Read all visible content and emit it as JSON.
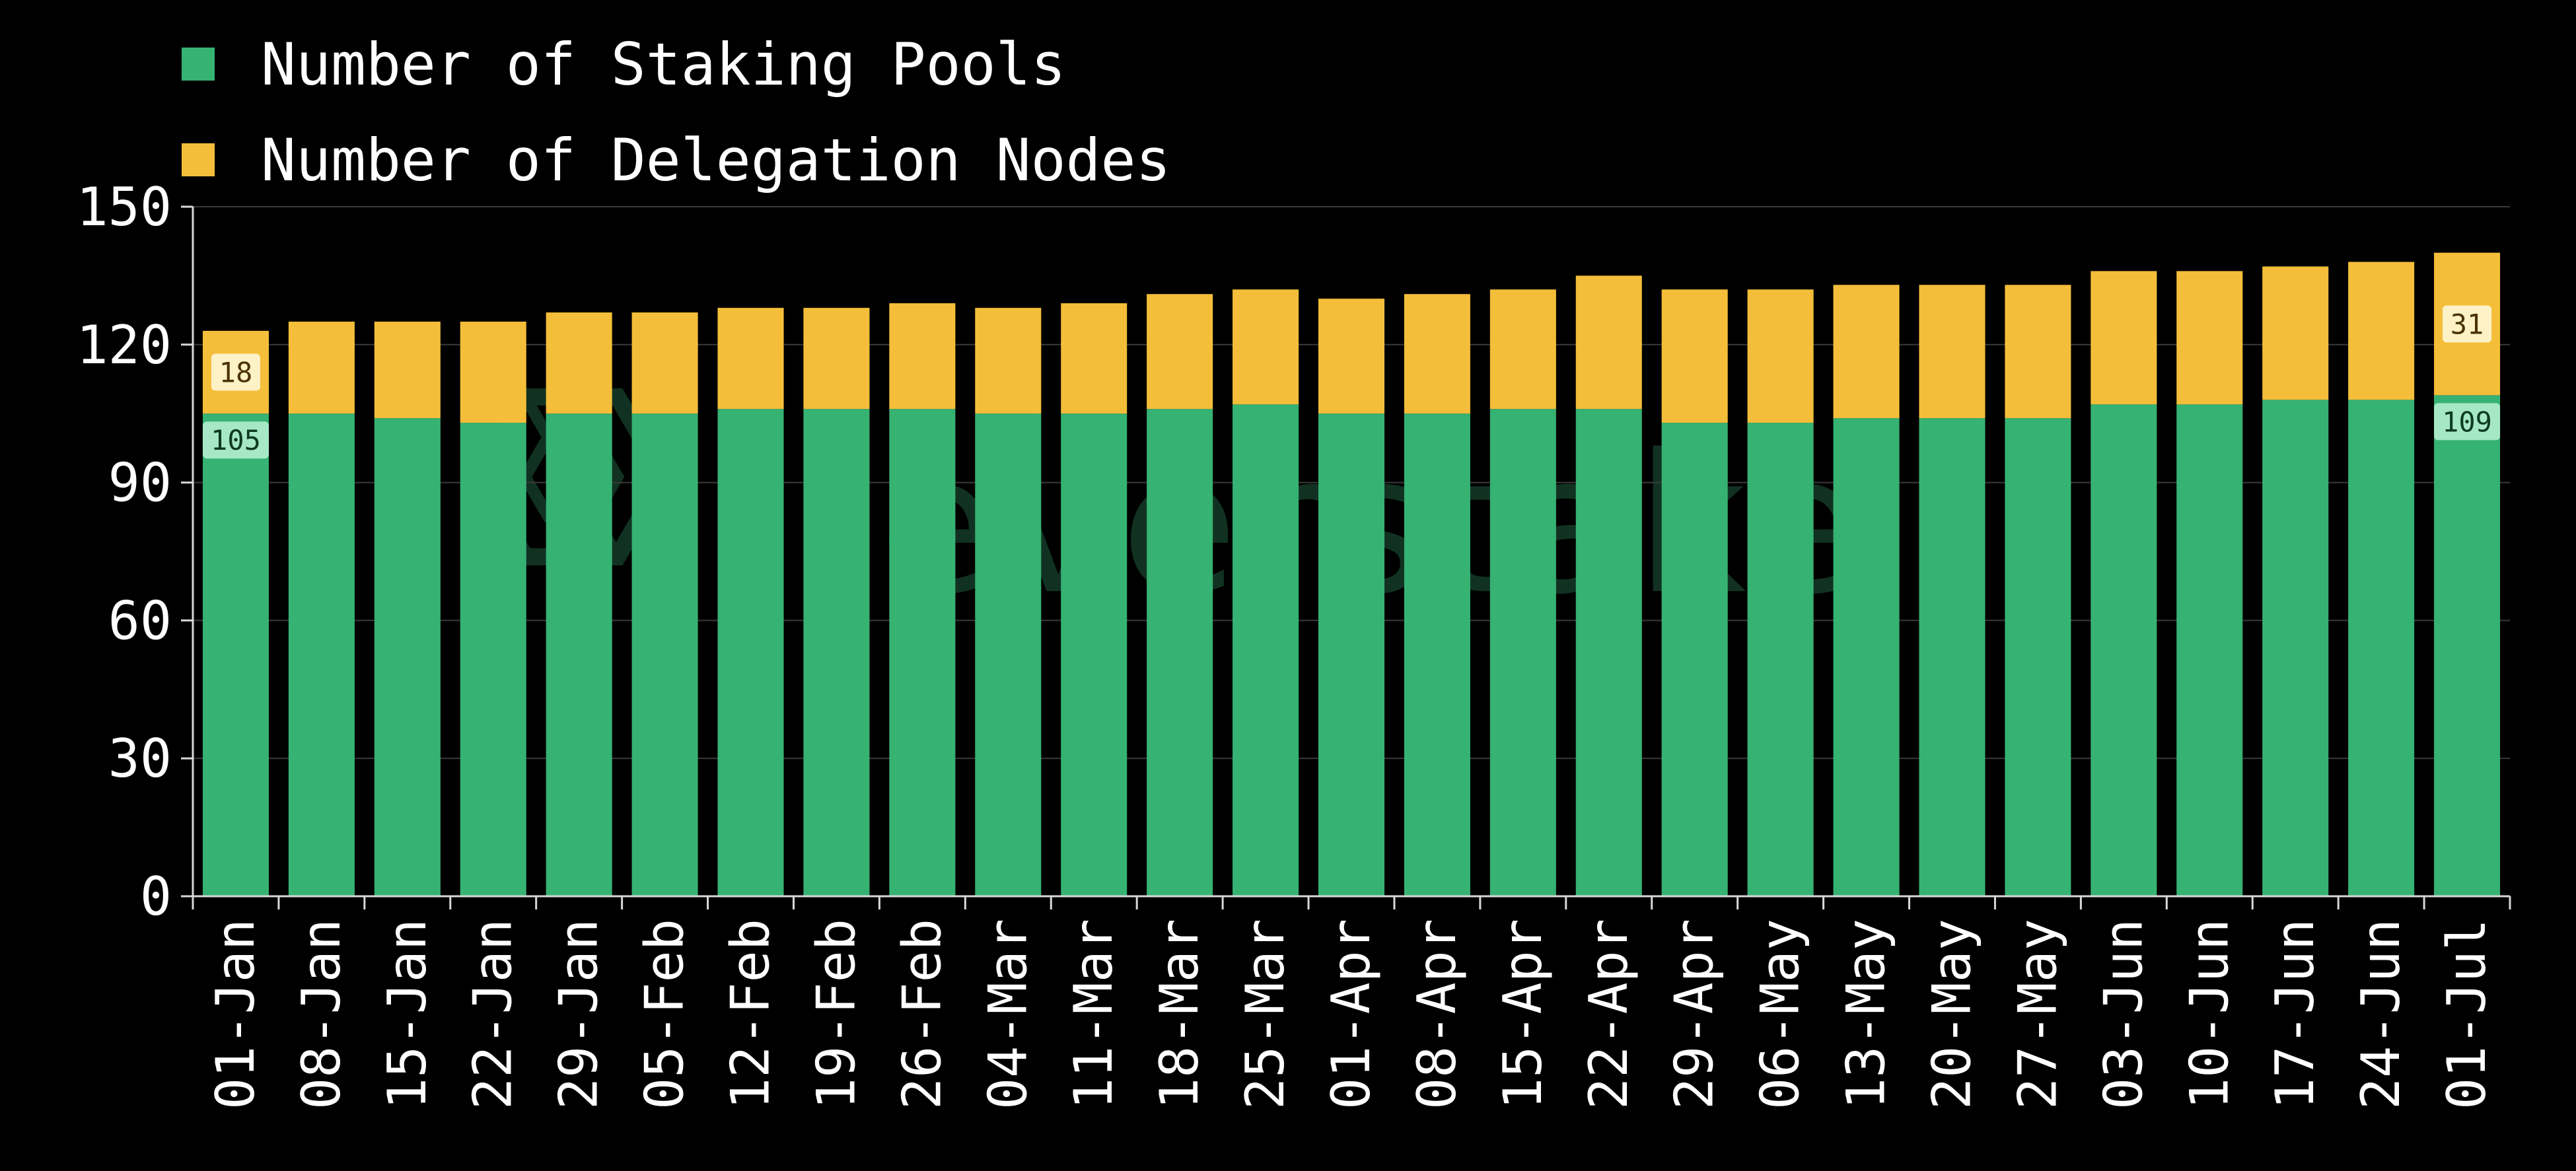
{
  "chart_data": {
    "type": "bar",
    "stacked": true,
    "categories": [
      "01-Jan",
      "08-Jan",
      "15-Jan",
      "22-Jan",
      "29-Jan",
      "05-Feb",
      "12-Feb",
      "19-Feb",
      "26-Feb",
      "04-Mar",
      "11-Mar",
      "18-Mar",
      "25-Mar",
      "01-Apr",
      "08-Apr",
      "15-Apr",
      "22-Apr",
      "29-Apr",
      "06-May",
      "13-May",
      "20-May",
      "27-May",
      "03-Jun",
      "10-Jun",
      "17-Jun",
      "24-Jun",
      "01-Jul"
    ],
    "series": [
      {
        "name": "Number of Staking Pools",
        "color": "#36b273",
        "values": [
          105,
          105,
          104,
          103,
          105,
          105,
          106,
          106,
          106,
          105,
          105,
          106,
          107,
          105,
          105,
          106,
          106,
          103,
          103,
          104,
          104,
          104,
          107,
          107,
          108,
          108,
          109
        ]
      },
      {
        "name": "Number of Delegation Nodes",
        "color": "#f4be3a",
        "values": [
          18,
          20,
          21,
          22,
          22,
          22,
          22,
          22,
          23,
          23,
          24,
          25,
          25,
          25,
          26,
          26,
          29,
          29,
          29,
          29,
          29,
          29,
          29,
          29,
          29,
          30,
          31
        ]
      }
    ],
    "data_labels": [
      {
        "series": 0,
        "category": "01-Jan",
        "text": "105"
      },
      {
        "series": 1,
        "category": "01-Jan",
        "text": "18"
      },
      {
        "series": 0,
        "category": "01-Jul",
        "text": "109"
      },
      {
        "series": 1,
        "category": "01-Jul",
        "text": "31"
      }
    ],
    "yticks": [
      0,
      30,
      60,
      90,
      120,
      150
    ],
    "ylim": [
      0,
      150
    ],
    "grid": true,
    "legend_position": "top-left",
    "xlabel": "",
    "ylabel": "",
    "title": "",
    "background": "#000000",
    "watermark": "everstake"
  }
}
